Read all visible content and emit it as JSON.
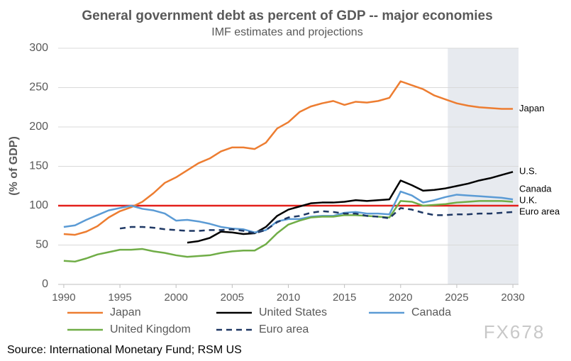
{
  "chart_data": {
    "type": "line",
    "title": "General government debt as percent of GDP -- major economies",
    "subtitle": "IMF estimates and projections",
    "y_label": "(% of GDP)",
    "source": "Source: International Monetary Fund; RSM US",
    "watermark": "FX678",
    "x": [
      1990,
      1991,
      1992,
      1993,
      1994,
      1995,
      1996,
      1997,
      1998,
      1999,
      2000,
      2001,
      2002,
      2003,
      2004,
      2005,
      2006,
      2007,
      2008,
      2009,
      2010,
      2011,
      2012,
      2013,
      2014,
      2015,
      2016,
      2017,
      2018,
      2019,
      2020,
      2021,
      2022,
      2023,
      2024,
      2025,
      2026,
      2027,
      2028,
      2029,
      2030
    ],
    "xlim": [
      1989.5,
      2030.5
    ],
    "xticks": [
      1990,
      1995,
      2000,
      2005,
      2010,
      2015,
      2020,
      2025,
      2030
    ],
    "ylim": [
      0,
      300
    ],
    "yticks": [
      0,
      50,
      100,
      150,
      200,
      250,
      300
    ],
    "grid": true,
    "reference_line": {
      "value": 100,
      "color": "#e3201b"
    },
    "shade": {
      "range": [
        2024.2,
        2030.5
      ],
      "color": "#e7eaef"
    },
    "series": [
      {
        "name": "Japan",
        "end_label": "Japan",
        "color": "#ed7d31",
        "dash": false,
        "values": [
          64,
          63,
          67,
          74,
          85,
          93,
          98,
          105,
          116,
          129,
          136,
          145,
          154,
          160,
          169,
          174,
          174,
          172,
          180,
          198,
          206,
          219,
          226,
          230,
          233,
          228,
          232,
          231,
          233,
          237,
          258,
          253,
          248,
          240,
          235,
          230,
          227,
          225,
          224,
          223,
          223
        ]
      },
      {
        "name": "United States",
        "end_label": "U.S.",
        "color": "#000000",
        "dash": false,
        "values": [
          null,
          null,
          null,
          null,
          null,
          null,
          null,
          null,
          null,
          null,
          null,
          53,
          55,
          59,
          67,
          66,
          64,
          65,
          73,
          87,
          95,
          99,
          103,
          104,
          104,
          105,
          107,
          106,
          107,
          108,
          132,
          126,
          119,
          120,
          122,
          125,
          128,
          132,
          135,
          139,
          143
        ]
      },
      {
        "name": "Canada",
        "end_label": "Canada",
        "color": "#5b9bd5",
        "dash": false,
        "values": [
          73,
          75,
          82,
          88,
          94,
          97,
          100,
          96,
          94,
          90,
          81,
          82,
          80,
          77,
          73,
          71,
          70,
          66,
          69,
          80,
          83,
          83,
          86,
          87,
          87,
          91,
          92,
          90,
          90,
          89,
          118,
          113,
          104,
          107,
          111,
          114,
          113,
          112,
          111,
          110,
          108
        ]
      },
      {
        "name": "United Kingdom",
        "end_label": "U.K.",
        "color": "#70ad47",
        "dash": false,
        "values": [
          30,
          29,
          33,
          38,
          41,
          44,
          44,
          45,
          42,
          40,
          37,
          35,
          36,
          37,
          40,
          42,
          43,
          43,
          51,
          65,
          76,
          81,
          85,
          86,
          86,
          88,
          88,
          87,
          86,
          85,
          106,
          105,
          100,
          101,
          102,
          104,
          105,
          106,
          106,
          106,
          105
        ]
      },
      {
        "name": "Euro area",
        "end_label": "Euro area",
        "color": "#1f3864",
        "dash": true,
        "values": [
          null,
          null,
          null,
          null,
          null,
          71,
          73,
          73,
          72,
          70,
          69,
          68,
          68,
          69,
          69,
          70,
          68,
          65,
          69,
          79,
          85,
          87,
          91,
          93,
          92,
          90,
          90,
          87,
          86,
          84,
          97,
          95,
          91,
          88,
          88,
          89,
          89,
          90,
          90,
          91,
          92
        ]
      }
    ]
  }
}
